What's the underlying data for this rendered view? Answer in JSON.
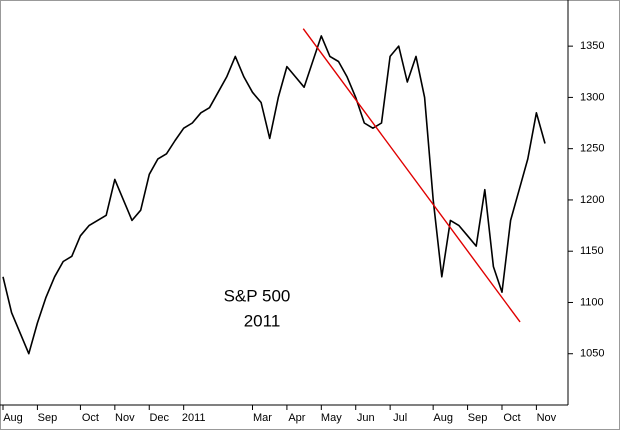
{
  "chart_data": {
    "type": "line",
    "annotations": [
      "S&P 500",
      "2011"
    ],
    "categories": [
      "Aug",
      null,
      null,
      null,
      "Sep",
      null,
      null,
      null,
      null,
      "Oct",
      null,
      null,
      null,
      "Nov",
      null,
      null,
      null,
      "Dec",
      null,
      null,
      null,
      "2011",
      null,
      null,
      null,
      null,
      null,
      null,
      null,
      "Mar",
      null,
      null,
      null,
      "Apr",
      null,
      null,
      null,
      "May",
      null,
      null,
      null,
      "Jun",
      null,
      null,
      null,
      "Jul",
      null,
      null,
      null,
      null,
      "Aug",
      null,
      null,
      null,
      "Sep",
      null,
      null,
      null,
      "Oct",
      null,
      null,
      null,
      "Nov",
      null
    ],
    "series": [
      {
        "color": "#000000",
        "values": [
          1125,
          1090,
          1070,
          1050,
          1080,
          1105,
          1125,
          1140,
          1145,
          1165,
          1175,
          1180,
          1185,
          1220,
          1200,
          1180,
          1190,
          1225,
          1240,
          1245,
          1258,
          1270,
          1275,
          1285,
          1290,
          1305,
          1320,
          1340,
          1320,
          1305,
          1295,
          1260,
          1300,
          1330,
          1320,
          1310,
          1335,
          1360,
          1340,
          1335,
          1320,
          1300,
          1275,
          1270,
          1275,
          1340,
          1350,
          1315,
          1340,
          1300,
          1200,
          1125,
          1180,
          1175,
          1165,
          1155,
          1210,
          1135,
          1110,
          1180,
          1210,
          1240,
          1285,
          1255
        ]
      }
    ],
    "trendline": {
      "color": "#e00000",
      "x": [
        34.9,
        60.1
      ],
      "values": [
        1367,
        1081
      ]
    },
    "ylim": [
      1000,
      1395
    ],
    "yticks": [
      1050,
      1100,
      1150,
      1200,
      1250,
      1300,
      1350
    ]
  }
}
